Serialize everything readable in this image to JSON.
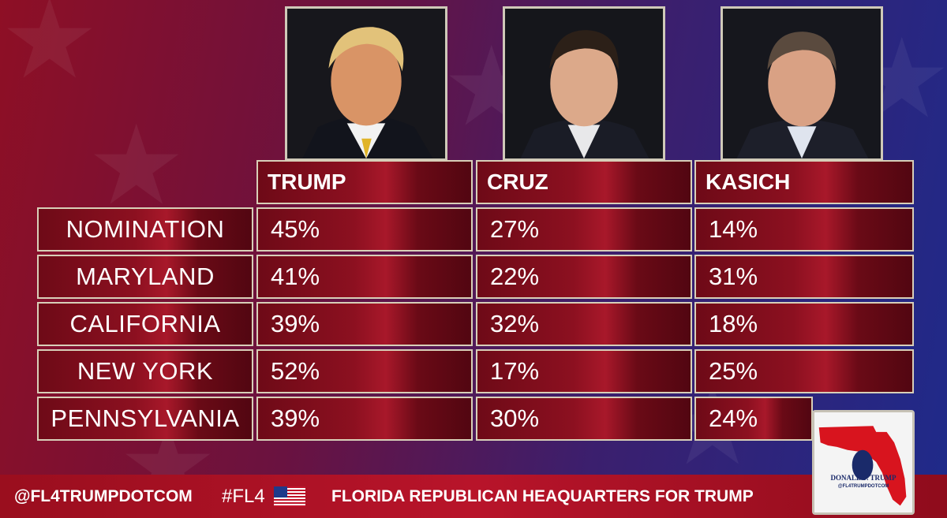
{
  "chart_data": {
    "type": "table",
    "columns": [
      "TRUMP",
      "CRUZ",
      "KASICH"
    ],
    "rows": [
      {
        "label": "NOMINATION",
        "values": [
          "45%",
          "27%",
          "14%"
        ]
      },
      {
        "label": "MARYLAND",
        "values": [
          "41%",
          "22%",
          "31%"
        ]
      },
      {
        "label": "CALIFORNIA",
        "values": [
          "39%",
          "32%",
          "18%"
        ]
      },
      {
        "label": "NEW YORK",
        "values": [
          "52%",
          "17%",
          "25%"
        ]
      },
      {
        "label": "PENNSYLVANIA",
        "values": [
          "39%",
          "30%",
          "24%"
        ]
      }
    ]
  },
  "footer": {
    "handle": "@FL4TRUMPDOTCOM",
    "hashtag": "#FL4",
    "headline": "FLORIDA REPUBLICAN HEAQUARTERS FOR TRUMP",
    "flag_icon": "us-flag-icon"
  },
  "badge": {
    "logo_text": "DONALD J. TRUMP",
    "logo_subtext": "@FL4TRUMPDOTCOM",
    "map_icon": "florida-map-icon"
  },
  "colors": {
    "cell_red": "#8c1020",
    "border": "#d8cfb8",
    "footer_red": "#b8142a"
  }
}
